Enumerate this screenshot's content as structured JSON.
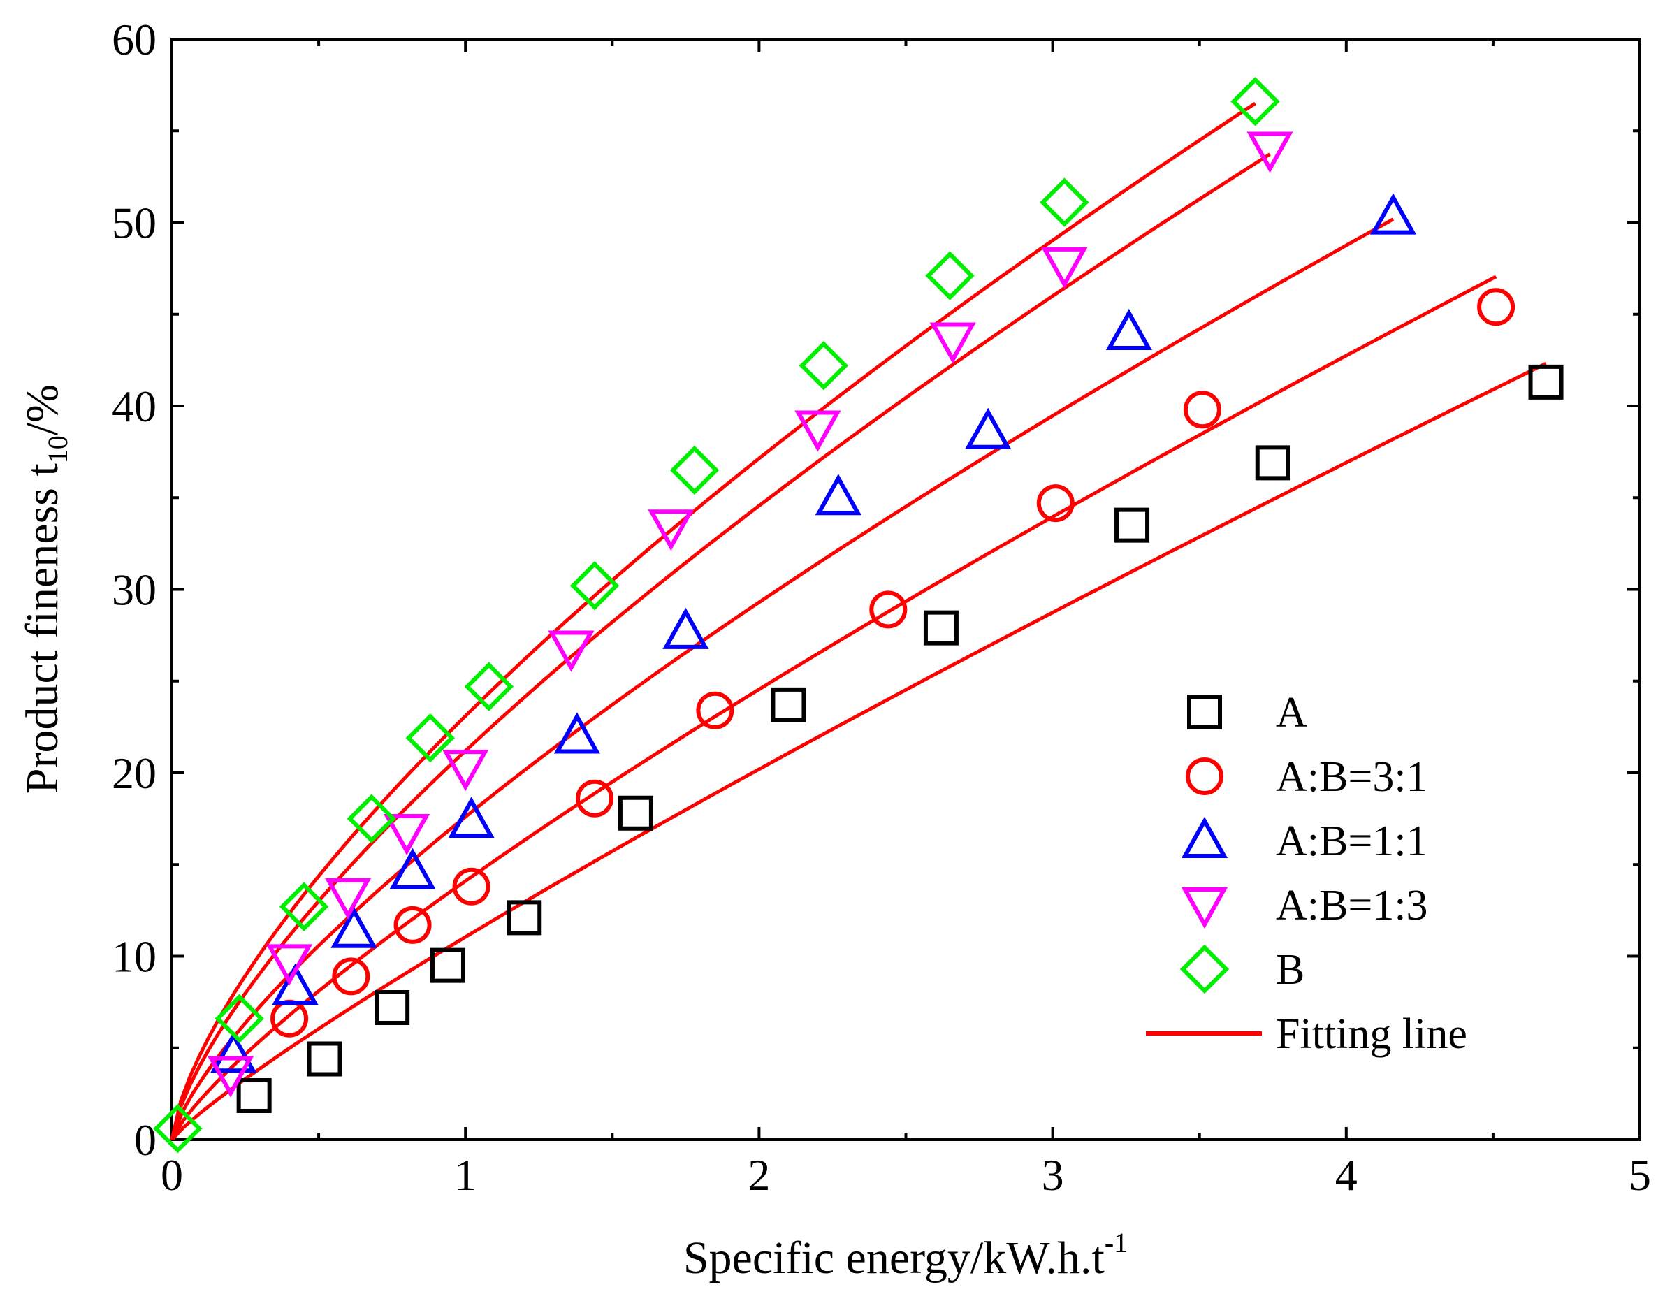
{
  "chart_data": {
    "type": "scatter",
    "title": "",
    "xlabel_main": "Specific energy/kW.h.t",
    "xlabel_sup": "-1",
    "ylabel_main": "Product fineness t",
    "ylabel_sub": "10",
    "ylabel_tail": "/%",
    "xlim": [
      0,
      5
    ],
    "ylim": [
      0,
      60
    ],
    "xticks": [
      0,
      1,
      2,
      3,
      4,
      5
    ],
    "yticks": [
      0,
      10,
      20,
      30,
      40,
      50,
      60
    ],
    "xtick_labels": [
      "0",
      "1",
      "2",
      "3",
      "4",
      "5"
    ],
    "ytick_labels": [
      "0",
      "10",
      "20",
      "30",
      "40",
      "50",
      "60"
    ],
    "grid": false,
    "legend_position": "right",
    "fit_color": "#ff0000",
    "series": [
      {
        "name": "A",
        "label": "A",
        "marker": "square",
        "color": "#000000",
        "x": [
          0.28,
          0.52,
          0.75,
          0.94,
          1.2,
          1.58,
          2.1,
          2.62,
          3.27,
          3.75,
          4.68
        ],
        "y": [
          2.4,
          4.4,
          7.2,
          9.5,
          12.1,
          17.8,
          23.7,
          27.9,
          33.5,
          36.9,
          41.3
        ],
        "fit": {
          "a": 11.05,
          "b": 0.87,
          "xmax": 4.68
        }
      },
      {
        "name": "A:B=3:1",
        "label": "A:B=3:1",
        "marker": "circle",
        "color": "#ff0000",
        "x": [
          0.4,
          0.61,
          0.82,
          1.02,
          1.44,
          1.85,
          2.44,
          3.01,
          3.51,
          4.51
        ],
        "y": [
          6.6,
          8.9,
          11.7,
          13.8,
          18.6,
          23.4,
          28.9,
          34.7,
          39.8,
          45.4
        ],
        "fit": {
          "a": 14.1,
          "b": 0.8,
          "xmax": 4.51
        }
      },
      {
        "name": "A:B=1:1",
        "label": "A:B=1:1",
        "marker": "triangle-up",
        "color": "#0000ff",
        "x": [
          0.21,
          0.42,
          0.62,
          0.82,
          1.02,
          1.38,
          1.75,
          2.27,
          2.78,
          3.26,
          4.16
        ],
        "y": [
          4.6,
          8.3,
          11.4,
          14.6,
          17.4,
          22.0,
          27.7,
          35.0,
          38.6,
          44.0,
          50.3
        ],
        "fit": {
          "a": 17.6,
          "b": 0.735,
          "xmax": 4.16
        }
      },
      {
        "name": "A:B=1:3",
        "label": "A:B=1:3",
        "marker": "triangle-down",
        "color": "#ff00ff",
        "x": [
          0.2,
          0.4,
          0.6,
          0.8,
          1.0,
          1.36,
          1.7,
          2.2,
          2.66,
          3.04,
          3.74
        ],
        "y": [
          3.6,
          9.7,
          13.3,
          16.8,
          20.3,
          26.8,
          33.4,
          38.8,
          43.6,
          47.7,
          54.0
        ],
        "fit": {
          "a": 21.2,
          "b": 0.705,
          "xmax": 3.74
        }
      },
      {
        "name": "B",
        "label": "B",
        "marker": "diamond",
        "color": "#00ee00",
        "x": [
          0.02,
          0.23,
          0.45,
          0.68,
          0.88,
          1.08,
          1.44,
          1.78,
          2.22,
          2.65,
          3.04,
          3.69
        ],
        "y": [
          0.6,
          6.6,
          12.7,
          17.5,
          21.9,
          24.7,
          30.2,
          36.5,
          42.2,
          47.1,
          51.1,
          56.6
        ],
        "fit": {
          "a": 23.1,
          "b": 0.685,
          "xmax": 3.69
        }
      }
    ],
    "legend": [
      {
        "label": "A",
        "marker": "square",
        "color": "#000000"
      },
      {
        "label": "A:B=3:1",
        "marker": "circle",
        "color": "#ff0000"
      },
      {
        "label": "A:B=1:1",
        "marker": "triangle-up",
        "color": "#0000ff"
      },
      {
        "label": "A:B=1:3",
        "marker": "triangle-down",
        "color": "#ff00ff"
      },
      {
        "label": "B",
        "marker": "diamond",
        "color": "#00ee00"
      },
      {
        "label": "Fitting line",
        "marker": "line",
        "color": "#ff0000"
      }
    ]
  }
}
